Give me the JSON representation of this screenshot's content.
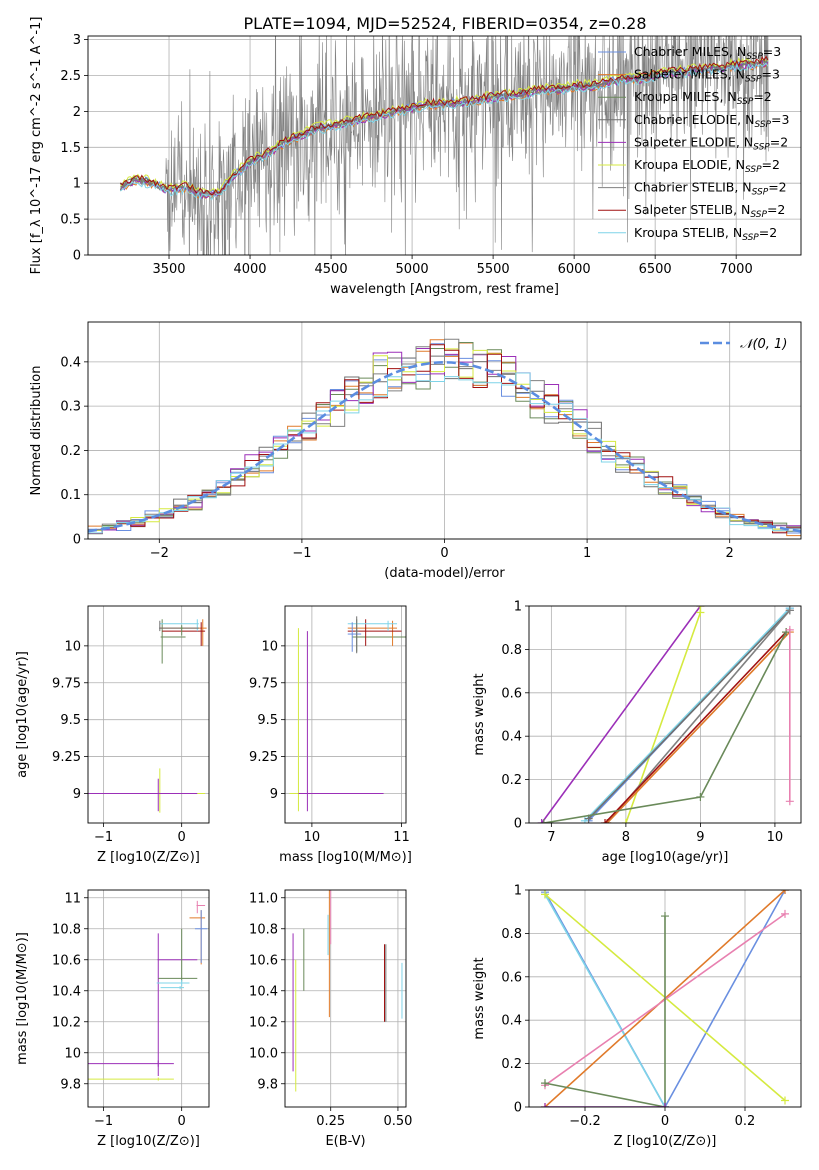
{
  "colors": {
    "chabrier_miles": "#6a8fe0",
    "salpeter_miles": "#e07a2a",
    "kroupa_miles": "#6a8a5a",
    "chabrier_elodie": "#707070",
    "salpeter_elodie": "#9b2fb8",
    "kroupa_elodie": "#d5ea40",
    "chabrier_stelib": "#808080",
    "salpeter_stelib": "#a01010",
    "kroupa_stelib": "#7fd4e8",
    "pink": "#e880b0",
    "normal": "#5b8de0"
  },
  "chart_data": [
    {
      "id": "spectrum",
      "type": "line",
      "title": "PLATE=1094, MJD=52524, FIBERID=0354, z=0.28",
      "xlabel": "wavelength [Angstrom, rest frame]",
      "ylabel": "Flux [f_λ 10^-17 erg cm^-2 s^-1 A^-1]",
      "xlim": [
        3000,
        7400
      ],
      "ylim": [
        0,
        3.05
      ],
      "xticks": [
        3500,
        4000,
        4500,
        5000,
        5500,
        6000,
        6500,
        7000
      ],
      "yticks": [
        0.0,
        0.5,
        1.0,
        1.5,
        2.0,
        2.5,
        3.0
      ],
      "legend_position": "top-right",
      "legend": [
        {
          "main": "Chabrier MILES, N",
          "sub": "SSP",
          "tail": "=3",
          "color": "chabrier_miles"
        },
        {
          "main": "Salpeter MILES, N",
          "sub": "SSP",
          "tail": "=3",
          "color": "salpeter_miles"
        },
        {
          "main": "Kroupa MILES, N",
          "sub": "SSP",
          "tail": "=2",
          "color": "kroupa_miles"
        },
        {
          "main": "Chabrier ELODIE, N",
          "sub": "SSP",
          "tail": "=3",
          "color": "chabrier_elodie"
        },
        {
          "main": "Salpeter ELODIE, N",
          "sub": "SSP",
          "tail": "=2",
          "color": "salpeter_elodie"
        },
        {
          "main": "Kroupa ELODIE, N",
          "sub": "SSP",
          "tail": "=2",
          "color": "kroupa_elodie"
        },
        {
          "main": "Chabrier STELIB, N",
          "sub": "SSP",
          "tail": "=2",
          "color": "chabrier_stelib"
        },
        {
          "main": "Salpeter STELIB, N",
          "sub": "SSP",
          "tail": "=2",
          "color": "salpeter_stelib"
        },
        {
          "main": "Kroupa STELIB, N",
          "sub": "SSP",
          "tail": "=2",
          "color": "kroupa_stelib"
        }
      ],
      "model_continuum": [
        [
          3200,
          0.95
        ],
        [
          3300,
          1.05
        ],
        [
          3400,
          1.0
        ],
        [
          3500,
          0.9
        ],
        [
          3600,
          0.95
        ],
        [
          3700,
          0.85
        ],
        [
          3800,
          0.85
        ],
        [
          3900,
          1.1
        ],
        [
          4000,
          1.3
        ],
        [
          4100,
          1.4
        ],
        [
          4200,
          1.55
        ],
        [
          4300,
          1.65
        ],
        [
          4400,
          1.75
        ],
        [
          4500,
          1.8
        ],
        [
          4600,
          1.85
        ],
        [
          4700,
          1.9
        ],
        [
          4800,
          1.95
        ],
        [
          4900,
          2.0
        ],
        [
          5000,
          2.05
        ],
        [
          5100,
          2.1
        ],
        [
          5200,
          2.1
        ],
        [
          5300,
          2.12
        ],
        [
          5400,
          2.15
        ],
        [
          5500,
          2.2
        ],
        [
          5600,
          2.22
        ],
        [
          5700,
          2.25
        ],
        [
          5800,
          2.3
        ],
        [
          5900,
          2.3
        ],
        [
          6000,
          2.35
        ],
        [
          6100,
          2.35
        ],
        [
          6200,
          2.4
        ],
        [
          6300,
          2.45
        ],
        [
          6400,
          2.45
        ],
        [
          6500,
          2.5
        ],
        [
          6600,
          2.55
        ],
        [
          6700,
          2.55
        ],
        [
          6800,
          2.6
        ],
        [
          6900,
          2.6
        ],
        [
          7000,
          2.65
        ],
        [
          7100,
          2.65
        ],
        [
          7200,
          2.7
        ]
      ],
      "data_note_region": [
        3500,
        7200
      ]
    },
    {
      "id": "residuals",
      "type": "bar",
      "xlabel": "(data-model)/error",
      "ylabel": "Normed distribution",
      "xlim": [
        -2.5,
        2.5
      ],
      "ylim": [
        0,
        0.49
      ],
      "xticks": [
        -2,
        -1,
        0,
        1,
        2
      ],
      "yticks": [
        0.0,
        0.1,
        0.2,
        0.3,
        0.4
      ],
      "legend_position": "top-right",
      "legend": [
        {
          "label": "𝒩(0, 1)",
          "color": "normal"
        }
      ],
      "bin_width": 0.1
    },
    {
      "id": "age-vs-Z",
      "type": "scatter",
      "xlabel": "Z [log10(Z/Z⊙)]",
      "ylabel": "age  [log10(age/yr)]",
      "xlim": [
        -1.2,
        0.35
      ],
      "ylim": [
        8.8,
        10.27
      ],
      "xticks": [
        -1,
        0
      ],
      "yticks": [
        9.0,
        9.25,
        9.5,
        9.75,
        10.0
      ]
    },
    {
      "id": "age-vs-mass",
      "type": "scatter",
      "xlabel": "mass [log10(M/M⊙)]",
      "ylabel": "",
      "xlim": [
        9.7,
        11.05
      ],
      "ylim": [
        8.8,
        10.27
      ],
      "xticks": [
        10,
        11
      ],
      "yticks": [
        9.0,
        9.25,
        9.5,
        9.75,
        10.0
      ]
    },
    {
      "id": "massweight-vs-age",
      "type": "line",
      "xlabel": "age  [log10(age/yr)]",
      "ylabel": "mass weight",
      "xlim": [
        6.7,
        10.35
      ],
      "ylim": [
        0,
        1
      ],
      "xticks": [
        7,
        8,
        9,
        10
      ],
      "yticks": [
        0.0,
        0.2,
        0.4,
        0.6,
        0.8,
        1.0
      ],
      "series": [
        {
          "color": "salpeter_elodie",
          "x": [
            6.87,
            9.0
          ],
          "y": [
            0.0,
            1.0
          ]
        },
        {
          "color": "kroupa_elodie",
          "x": [
            8.0,
            9.0,
            9.0
          ],
          "y": [
            0.0,
            0.97,
            1.0
          ]
        },
        {
          "color": "chabrier_miles",
          "x": [
            7.5,
            10.2
          ],
          "y": [
            0.01,
            0.99
          ]
        },
        {
          "color": "kroupa_stelib",
          "x": [
            7.45,
            10.2
          ],
          "y": [
            0.01,
            0.99
          ]
        },
        {
          "color": "chabrier_elodie",
          "x": [
            7.5,
            10.2
          ],
          "y": [
            0.02,
            0.98
          ]
        },
        {
          "color": "chabrier_stelib",
          "x": [
            7.75,
            10.2
          ],
          "y": [
            0.0,
            0.98
          ]
        },
        {
          "color": "salpeter_miles",
          "x": [
            7.75,
            10.2
          ],
          "y": [
            0.0,
            0.88
          ]
        },
        {
          "color": "salpeter_stelib",
          "x": [
            7.72,
            10.15
          ],
          "y": [
            0.0,
            0.88
          ]
        },
        {
          "color": "kroupa_miles",
          "x": [
            6.9,
            9.0,
            10.15
          ],
          "y": [
            0.0,
            0.12,
            0.88
          ]
        },
        {
          "color": "pink",
          "x": [
            10.2,
            10.2
          ],
          "y": [
            0.1,
            0.89
          ]
        }
      ]
    },
    {
      "id": "mass-vs-Z",
      "type": "scatter",
      "xlabel": "Z [log10(Z/Z⊙)]",
      "ylabel": "mass [log10(M/M⊙)]",
      "xlim": [
        -1.2,
        0.35
      ],
      "ylim": [
        9.65,
        11.05
      ],
      "xticks": [
        -1,
        0
      ],
      "yticks": [
        9.8,
        10.0,
        10.2,
        10.4,
        10.6,
        10.8,
        11.0
      ]
    },
    {
      "id": "mass-vs-EBV",
      "type": "scatter",
      "xlabel": "E(B-V)",
      "ylabel": "",
      "xlim": [
        0.08,
        0.53
      ],
      "ylim": [
        9.65,
        11.05
      ],
      "xticks": [
        0.25,
        0.5
      ],
      "yticks": [
        9.8,
        10.0,
        10.2,
        10.4,
        10.6,
        10.8,
        11.0
      ]
    },
    {
      "id": "massweight-vs-Z",
      "type": "line",
      "xlabel": "Z [log10(Z/Z⊙)]",
      "ylabel": "mass weight",
      "xlim": [
        -0.34,
        0.34
      ],
      "ylim": [
        0,
        1
      ],
      "xticks": [
        -0.2,
        0.0,
        0.2
      ],
      "yticks": [
        0.0,
        0.2,
        0.4,
        0.6,
        0.8,
        1.0
      ],
      "series": [
        {
          "color": "chabrier_miles",
          "x": [
            -0.3,
            0.0,
            0.3
          ],
          "y": [
            0.99,
            0.0,
            1.0
          ]
        },
        {
          "color": "kroupa_stelib",
          "x": [
            -0.3,
            0.0
          ],
          "y": [
            0.98,
            0.0
          ]
        },
        {
          "color": "kroupa_elodie",
          "x": [
            -0.3,
            0.3
          ],
          "y": [
            0.98,
            0.03
          ]
        },
        {
          "color": "salpeter_miles",
          "x": [
            -0.3,
            0.3
          ],
          "y": [
            0.0,
            1.0
          ]
        },
        {
          "color": "pink",
          "x": [
            -0.3,
            0.3
          ],
          "y": [
            0.1,
            0.89
          ]
        },
        {
          "color": "kroupa_miles",
          "x": [
            -0.3,
            0.0,
            0.0
          ],
          "y": [
            0.11,
            0.0,
            0.88
          ]
        },
        {
          "color": "salpeter_elodie",
          "x": [
            -0.3,
            0.0
          ],
          "y": [
            0.0,
            0.0
          ]
        }
      ]
    }
  ]
}
